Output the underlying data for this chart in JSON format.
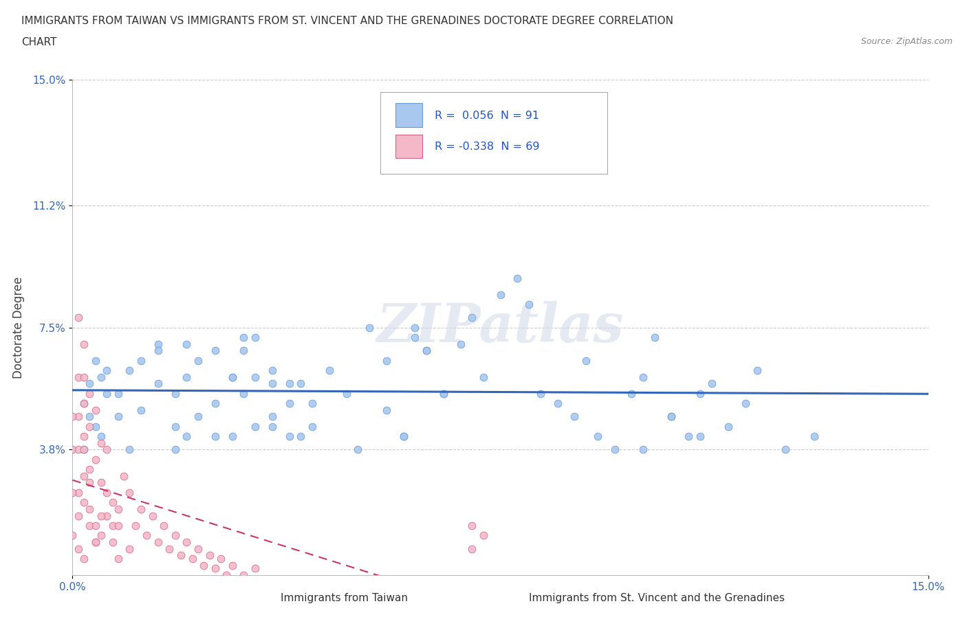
{
  "title_line1": "IMMIGRANTS FROM TAIWAN VS IMMIGRANTS FROM ST. VINCENT AND THE GRENADINES DOCTORATE DEGREE CORRELATION",
  "title_line2": "CHART",
  "source": "Source: ZipAtlas.com",
  "ylabel": "Doctorate Degree",
  "xlim": [
    0.0,
    0.15
  ],
  "ylim": [
    0.0,
    0.15
  ],
  "ytick_positions": [
    0.038,
    0.075,
    0.112,
    0.15
  ],
  "ytick_labels": [
    "3.8%",
    "7.5%",
    "11.2%",
    "15.0%"
  ],
  "xtick_positions": [
    0.0,
    0.15
  ],
  "xtick_labels": [
    "0.0%",
    "15.0%"
  ],
  "R_taiwan": 0.056,
  "N_taiwan": 91,
  "R_stv": -0.338,
  "N_stv": 69,
  "color_taiwan": "#a8c8f0",
  "color_stv": "#f4b8c8",
  "edge_taiwan": "#6699cc",
  "edge_stv": "#cc6688",
  "trend_color_taiwan": "#3366bb",
  "trend_color_stv": "#cc3366",
  "watermark": "ZIPatlas",
  "taiwan_x": [
    0.005,
    0.008,
    0.01,
    0.015,
    0.018,
    0.02,
    0.022,
    0.025,
    0.028,
    0.03,
    0.032,
    0.035,
    0.038,
    0.04,
    0.042,
    0.045,
    0.002,
    0.003,
    0.004,
    0.006,
    0.005,
    0.008,
    0.01,
    0.012,
    0.015,
    0.018,
    0.02,
    0.022,
    0.025,
    0.028,
    0.03,
    0.032,
    0.035,
    0.038,
    0.04,
    0.05,
    0.052,
    0.055,
    0.058,
    0.06,
    0.062,
    0.065,
    0.068,
    0.07,
    0.072,
    0.075,
    0.078,
    0.08,
    0.082,
    0.085,
    0.088,
    0.09,
    0.092,
    0.095,
    0.098,
    0.1,
    0.102,
    0.105,
    0.108,
    0.11,
    0.112,
    0.115,
    0.118,
    0.12,
    0.125,
    0.13,
    0.002,
    0.003,
    0.004,
    0.006,
    0.018,
    0.02,
    0.025,
    0.035,
    0.038,
    0.042,
    0.048,
    0.012,
    0.015,
    0.028,
    0.03,
    0.032,
    0.035,
    0.055,
    0.058,
    0.06,
    0.062,
    0.065,
    0.1,
    0.105,
    0.11
  ],
  "taiwan_y": [
    0.06,
    0.055,
    0.062,
    0.058,
    0.045,
    0.07,
    0.065,
    0.068,
    0.042,
    0.055,
    0.06,
    0.048,
    0.052,
    0.058,
    0.045,
    0.062,
    0.052,
    0.058,
    0.045,
    0.062,
    0.042,
    0.048,
    0.038,
    0.065,
    0.07,
    0.055,
    0.042,
    0.048,
    0.052,
    0.06,
    0.068,
    0.072,
    0.045,
    0.058,
    0.042,
    0.038,
    0.075,
    0.05,
    0.042,
    0.072,
    0.068,
    0.055,
    0.07,
    0.078,
    0.06,
    0.085,
    0.09,
    0.082,
    0.055,
    0.052,
    0.048,
    0.065,
    0.042,
    0.038,
    0.055,
    0.06,
    0.072,
    0.048,
    0.042,
    0.055,
    0.058,
    0.045,
    0.052,
    0.062,
    0.038,
    0.042,
    0.038,
    0.048,
    0.065,
    0.055,
    0.038,
    0.06,
    0.042,
    0.062,
    0.042,
    0.052,
    0.055,
    0.05,
    0.068,
    0.06,
    0.072,
    0.045,
    0.058,
    0.065,
    0.042,
    0.075,
    0.068,
    0.055,
    0.038,
    0.048,
    0.042
  ],
  "stv_x": [
    0.0,
    0.001,
    0.001,
    0.001,
    0.001,
    0.001,
    0.002,
    0.002,
    0.002,
    0.002,
    0.002,
    0.002,
    0.003,
    0.003,
    0.003,
    0.003,
    0.003,
    0.004,
    0.004,
    0.004,
    0.004,
    0.005,
    0.005,
    0.005,
    0.006,
    0.006,
    0.006,
    0.007,
    0.007,
    0.007,
    0.008,
    0.008,
    0.008,
    0.009,
    0.01,
    0.01,
    0.011,
    0.012,
    0.013,
    0.014,
    0.015,
    0.016,
    0.017,
    0.018,
    0.019,
    0.02,
    0.021,
    0.022,
    0.023,
    0.024,
    0.025,
    0.026,
    0.027,
    0.028,
    0.03,
    0.032,
    0.0,
    0.0,
    0.0,
    0.001,
    0.001,
    0.002,
    0.002,
    0.003,
    0.004,
    0.005,
    0.07,
    0.07,
    0.072
  ],
  "stv_y": [
    0.038,
    0.025,
    0.038,
    0.048,
    0.06,
    0.078,
    0.03,
    0.042,
    0.052,
    0.06,
    0.07,
    0.038,
    0.02,
    0.032,
    0.045,
    0.055,
    0.015,
    0.035,
    0.015,
    0.05,
    0.01,
    0.028,
    0.04,
    0.012,
    0.018,
    0.025,
    0.038,
    0.022,
    0.01,
    0.015,
    0.015,
    0.02,
    0.005,
    0.03,
    0.025,
    0.008,
    0.015,
    0.02,
    0.012,
    0.018,
    0.01,
    0.015,
    0.008,
    0.012,
    0.006,
    0.01,
    0.005,
    0.008,
    0.003,
    0.006,
    0.002,
    0.005,
    0.0,
    0.003,
    0.0,
    0.002,
    0.012,
    0.025,
    0.048,
    0.008,
    0.018,
    0.005,
    0.022,
    0.028,
    0.01,
    0.018,
    0.008,
    0.015,
    0.012
  ]
}
